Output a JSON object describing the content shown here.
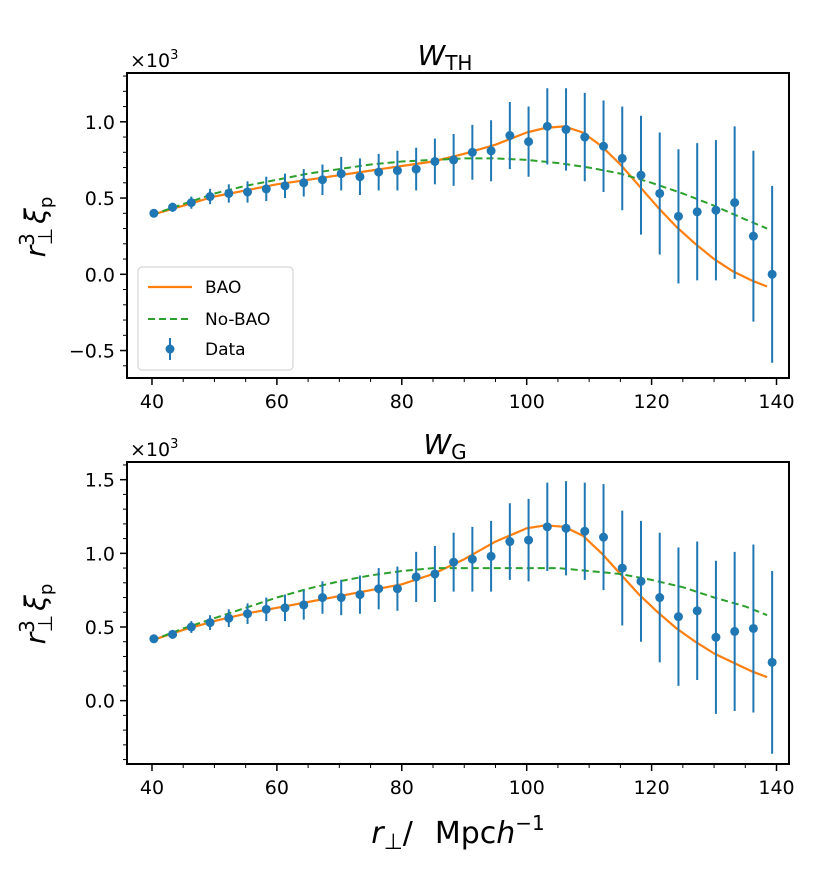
{
  "figure": {
    "xlabel": "r⊥/   Mpch⁻¹",
    "xlabel_parts": {
      "var": "r",
      "sub": "⊥",
      "slash": "/",
      "unit": "Mpc",
      "h": "h",
      "exp": "−1"
    }
  },
  "colors": {
    "bao": "#ff7f0e",
    "nobao": "#2ca02c",
    "data": "#1f77b4",
    "axes": "#000000"
  },
  "legend": {
    "placement": "lower-left of top panel",
    "entries": [
      {
        "label": "BAO",
        "style": "solid",
        "color": "#ff7f0e"
      },
      {
        "label": "No-BAO",
        "style": "dashed",
        "color": "#2ca02c"
      },
      {
        "label": "Data",
        "style": "errorbar",
        "color": "#1f77b4"
      }
    ]
  },
  "chart_data": [
    {
      "type": "line",
      "title": "W_TH",
      "title_main": "W",
      "title_sub": "TH",
      "ylabel": "r⊥³ ξ_p",
      "ylabel_parts": {
        "r": "r",
        "sup": "3",
        "sub": "⊥",
        "xi": "ξ",
        "xisub": "p"
      },
      "multiplier": "×10³",
      "multiplier_parts": {
        "base": "×10",
        "exp": "3"
      },
      "xlim": [
        36,
        142
      ],
      "ylim": [
        -0.68,
        1.32
      ],
      "grid": false,
      "xticks": [
        40,
        60,
        80,
        100,
        120,
        140
      ],
      "xtick_labels": [
        "40",
        "60",
        "80",
        "100",
        "120",
        "140"
      ],
      "yticks": [
        -0.5,
        0.0,
        0.5,
        1.0
      ],
      "ytick_labels": [
        "−0.5",
        "0.0",
        "0.5",
        "1.0"
      ],
      "series": [
        {
          "name": "BAO",
          "kind": "line",
          "style": "solid",
          "color": "#ff7f0e",
          "x": [
            40,
            45,
            50,
            55,
            60,
            65,
            70,
            75,
            80,
            85,
            90,
            95,
            100,
            103,
            106,
            109,
            112,
            115,
            118,
            121,
            124,
            127,
            130,
            133,
            136,
            138.5
          ],
          "y": [
            0.39,
            0.45,
            0.51,
            0.55,
            0.59,
            0.62,
            0.65,
            0.68,
            0.71,
            0.74,
            0.79,
            0.85,
            0.93,
            0.96,
            0.97,
            0.93,
            0.84,
            0.72,
            0.58,
            0.44,
            0.31,
            0.2,
            0.1,
            0.02,
            -0.04,
            -0.08
          ]
        },
        {
          "name": "No-BAO",
          "kind": "line",
          "style": "dashed",
          "color": "#2ca02c",
          "x": [
            40,
            45,
            50,
            55,
            60,
            65,
            70,
            75,
            80,
            85,
            90,
            95,
            100,
            105,
            110,
            115,
            120,
            125,
            130,
            135,
            138.5
          ],
          "y": [
            0.39,
            0.46,
            0.53,
            0.58,
            0.62,
            0.66,
            0.69,
            0.72,
            0.74,
            0.75,
            0.76,
            0.76,
            0.75,
            0.73,
            0.7,
            0.66,
            0.6,
            0.53,
            0.45,
            0.36,
            0.3
          ]
        },
        {
          "name": "Data",
          "kind": "errorbar",
          "color": "#1f77b4",
          "x": [
            40.3,
            43.3,
            46.3,
            49.3,
            52.3,
            55.3,
            58.3,
            61.3,
            64.3,
            67.3,
            70.3,
            73.3,
            76.3,
            79.3,
            82.3,
            85.3,
            88.3,
            91.3,
            94.3,
            97.3,
            100.3,
            103.3,
            106.3,
            109.3,
            112.3,
            115.3,
            118.3,
            121.3,
            124.3,
            127.3,
            130.3,
            133.3,
            136.3,
            139.3
          ],
          "y": [
            0.4,
            0.44,
            0.47,
            0.51,
            0.53,
            0.54,
            0.56,
            0.58,
            0.6,
            0.62,
            0.66,
            0.64,
            0.67,
            0.68,
            0.69,
            0.74,
            0.75,
            0.8,
            0.81,
            0.91,
            0.87,
            0.97,
            0.95,
            0.9,
            0.84,
            0.76,
            0.65,
            0.53,
            0.38,
            0.41,
            0.42,
            0.47,
            0.25,
            0.0
          ],
          "err": [
            0.02,
            0.03,
            0.04,
            0.05,
            0.06,
            0.07,
            0.08,
            0.08,
            0.09,
            0.1,
            0.11,
            0.12,
            0.12,
            0.13,
            0.14,
            0.15,
            0.17,
            0.18,
            0.2,
            0.22,
            0.23,
            0.25,
            0.27,
            0.29,
            0.3,
            0.34,
            0.39,
            0.4,
            0.44,
            0.45,
            0.46,
            0.5,
            0.56,
            0.58
          ]
        }
      ]
    },
    {
      "type": "line",
      "title": "W_G",
      "title_main": "W",
      "title_sub": "G",
      "ylabel": "r⊥³ ξ_p",
      "ylabel_parts": {
        "r": "r",
        "sup": "3",
        "sub": "⊥",
        "xi": "ξ",
        "xisub": "p"
      },
      "multiplier": "×10³",
      "multiplier_parts": {
        "base": "×10",
        "exp": "3"
      },
      "xlim": [
        36,
        142
      ],
      "ylim": [
        -0.43,
        1.62
      ],
      "grid": false,
      "xticks": [
        40,
        60,
        80,
        100,
        120,
        140
      ],
      "xtick_labels": [
        "40",
        "60",
        "80",
        "100",
        "120",
        "140"
      ],
      "yticks": [
        0.0,
        0.5,
        1.0,
        1.5
      ],
      "ytick_labels": [
        "0.0",
        "0.5",
        "1.0",
        "1.5"
      ],
      "series": [
        {
          "name": "BAO",
          "kind": "line",
          "style": "solid",
          "color": "#ff7f0e",
          "x": [
            40,
            45,
            50,
            55,
            60,
            65,
            70,
            75,
            80,
            85,
            90,
            95,
            100,
            103,
            106,
            109,
            112,
            115,
            118,
            121,
            124,
            127,
            130,
            133,
            136,
            138.5
          ],
          "y": [
            0.41,
            0.48,
            0.54,
            0.59,
            0.63,
            0.67,
            0.71,
            0.75,
            0.79,
            0.86,
            0.96,
            1.08,
            1.17,
            1.19,
            1.18,
            1.12,
            1.0,
            0.86,
            0.72,
            0.6,
            0.49,
            0.4,
            0.32,
            0.26,
            0.2,
            0.16
          ]
        },
        {
          "name": "No-BAO",
          "kind": "line",
          "style": "dashed",
          "color": "#2ca02c",
          "x": [
            40,
            45,
            50,
            55,
            60,
            65,
            70,
            75,
            80,
            85,
            90,
            95,
            100,
            105,
            110,
            115,
            120,
            125,
            130,
            135,
            138.5
          ],
          "y": [
            0.41,
            0.49,
            0.56,
            0.63,
            0.7,
            0.76,
            0.81,
            0.85,
            0.88,
            0.9,
            0.9,
            0.9,
            0.9,
            0.9,
            0.88,
            0.86,
            0.82,
            0.77,
            0.7,
            0.64,
            0.58
          ]
        },
        {
          "name": "Data",
          "kind": "errorbar",
          "color": "#1f77b4",
          "x": [
            40.3,
            43.3,
            46.3,
            49.3,
            52.3,
            55.3,
            58.3,
            61.3,
            64.3,
            67.3,
            70.3,
            73.3,
            76.3,
            79.3,
            82.3,
            85.3,
            88.3,
            91.3,
            94.3,
            97.3,
            100.3,
            103.3,
            106.3,
            109.3,
            112.3,
            115.3,
            118.3,
            121.3,
            124.3,
            127.3,
            130.3,
            133.3,
            136.3,
            139.3
          ],
          "y": [
            0.42,
            0.45,
            0.5,
            0.53,
            0.56,
            0.59,
            0.62,
            0.63,
            0.65,
            0.7,
            0.7,
            0.72,
            0.76,
            0.76,
            0.84,
            0.86,
            0.94,
            0.96,
            0.98,
            1.08,
            1.09,
            1.18,
            1.17,
            1.15,
            1.11,
            0.9,
            0.81,
            0.7,
            0.57,
            0.61,
            0.43,
            0.47,
            0.49,
            0.26
          ],
          "err": [
            0.02,
            0.03,
            0.04,
            0.05,
            0.06,
            0.07,
            0.08,
            0.09,
            0.1,
            0.11,
            0.12,
            0.13,
            0.14,
            0.15,
            0.17,
            0.19,
            0.2,
            0.22,
            0.24,
            0.26,
            0.28,
            0.3,
            0.32,
            0.33,
            0.36,
            0.39,
            0.41,
            0.44,
            0.47,
            0.47,
            0.52,
            0.54,
            0.57,
            0.62
          ]
        }
      ]
    }
  ]
}
